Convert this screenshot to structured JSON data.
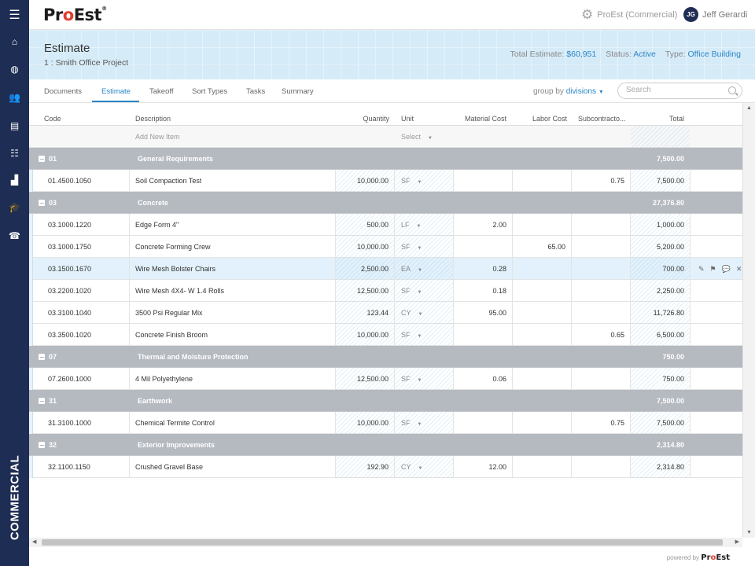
{
  "app": {
    "logo_prefix": "Pr",
    "logo_o": "o",
    "logo_suffix": "Est",
    "logo_reg": "®"
  },
  "sidebar": {
    "items": [
      {
        "name": "menu-icon",
        "glyph": "☰"
      },
      {
        "name": "home-icon",
        "glyph": "⌂"
      },
      {
        "name": "globe-icon",
        "glyph": "◍"
      },
      {
        "name": "users-icon",
        "glyph": "👥"
      },
      {
        "name": "inbox-icon",
        "glyph": "▤"
      },
      {
        "name": "checklist-icon",
        "glyph": "☷"
      },
      {
        "name": "reports-icon",
        "glyph": "▟"
      },
      {
        "name": "education-icon",
        "glyph": "🎓"
      },
      {
        "name": "support-icon",
        "glyph": "☎"
      }
    ],
    "vertical_label": "COMMERCIAL"
  },
  "topbar": {
    "company": "ProEst (Commercial)",
    "user_initials": "JG",
    "user_name": "Jeff Gerardi"
  },
  "header": {
    "title": "Estimate",
    "subtitle": "1 : Smith Office Project",
    "total_label": "Total Estimate:",
    "total_value": "$60,951",
    "status_label": "Status:",
    "status_value": "Active",
    "type_label": "Type:",
    "type_value": "Office Building"
  },
  "tabs": [
    {
      "label": "Documents"
    },
    {
      "label": "Estimate"
    },
    {
      "label": "Takeoff"
    },
    {
      "label": "Sort Types"
    },
    {
      "label": "Tasks"
    },
    {
      "label": "Summary"
    }
  ],
  "groupby": {
    "label": "group by",
    "value": "divisions"
  },
  "search": {
    "placeholder": "Search"
  },
  "columns": {
    "code": "Code",
    "description": "Description",
    "quantity": "Quantity",
    "unit": "Unit",
    "material": "Material Cost",
    "labor": "Labor Cost",
    "sub": "Subcontracto...",
    "total": "Total"
  },
  "new_item": {
    "label": "Add New Item",
    "unit_select": "Select"
  },
  "groups": [
    {
      "code": "01",
      "name": "General Requirements",
      "total": "7,500.00",
      "items": [
        {
          "code": "01.4500.1050",
          "desc": "Soil Compaction Test",
          "qty": "10,000.00",
          "unit": "SF",
          "material": "",
          "labor": "",
          "sub": "0.75",
          "total": "7,500.00"
        }
      ]
    },
    {
      "code": "03",
      "name": "Concrete",
      "total": "27,376.80",
      "items": [
        {
          "code": "03.1000.1220",
          "desc": "Edge Form 4\"",
          "qty": "500.00",
          "unit": "LF",
          "material": "2.00",
          "labor": "",
          "sub": "",
          "total": "1,000.00"
        },
        {
          "code": "03.1000.1750",
          "desc": "Concrete Forming Crew",
          "qty": "10,000.00",
          "unit": "SF",
          "material": "",
          "labor": "65.00",
          "sub": "",
          "total": "5,200.00"
        },
        {
          "code": "03.1500.1670",
          "desc": "Wire Mesh Bolster Chairs",
          "qty": "2,500.00",
          "unit": "EA",
          "material": "0.28",
          "labor": "",
          "sub": "",
          "total": "700.00",
          "selected": true
        },
        {
          "code": "03.2200.1020",
          "desc": "Wire Mesh 4X4- W 1.4 Rolls",
          "qty": "12,500.00",
          "unit": "SF",
          "material": "0.18",
          "labor": "",
          "sub": "",
          "total": "2,250.00"
        },
        {
          "code": "03.3100.1040",
          "desc": "3500 Psi Regular Mix",
          "qty": "123.44",
          "unit": "CY",
          "material": "95.00",
          "labor": "",
          "sub": "",
          "total": "11,726.80"
        },
        {
          "code": "03.3500.1020",
          "desc": "Concrete Finish Broom",
          "qty": "10,000.00",
          "unit": "SF",
          "material": "",
          "labor": "",
          "sub": "0.65",
          "total": "6,500.00"
        }
      ]
    },
    {
      "code": "07",
      "name": "Thermal and Moisture Protection",
      "total": "750.00",
      "items": [
        {
          "code": "07.2600.1000",
          "desc": "4 Mil Polyethylene",
          "qty": "12,500.00",
          "unit": "SF",
          "material": "0.06",
          "labor": "",
          "sub": "",
          "total": "750.00"
        }
      ]
    },
    {
      "code": "31",
      "name": "Earthwork",
      "total": "7,500.00",
      "items": [
        {
          "code": "31.3100.1000",
          "desc": "Chemical Termite Control",
          "qty": "10,000.00",
          "unit": "SF",
          "material": "",
          "labor": "",
          "sub": "0.75",
          "total": "7,500.00"
        }
      ]
    },
    {
      "code": "32",
      "name": "Exterior Improvements",
      "total": "2,314.80",
      "items": [
        {
          "code": "32.1100.1150",
          "desc": "Crushed Gravel Base",
          "qty": "192.90",
          "unit": "CY",
          "material": "12.00",
          "labor": "",
          "sub": "",
          "total": "2,314.80"
        }
      ]
    }
  ],
  "row_actions": [
    {
      "name": "edit-icon",
      "glyph": "✎"
    },
    {
      "name": "flag-icon",
      "glyph": "⚑"
    },
    {
      "name": "comment-icon",
      "glyph": "💬"
    },
    {
      "name": "delete-icon",
      "glyph": "✕"
    }
  ],
  "footer": {
    "powered_by": "powered by"
  },
  "colors": {
    "sidebar": "#1e2d54",
    "accent": "#2a86c7",
    "division_row": "#b5b9c0",
    "header_band": "#d6ebf8"
  }
}
